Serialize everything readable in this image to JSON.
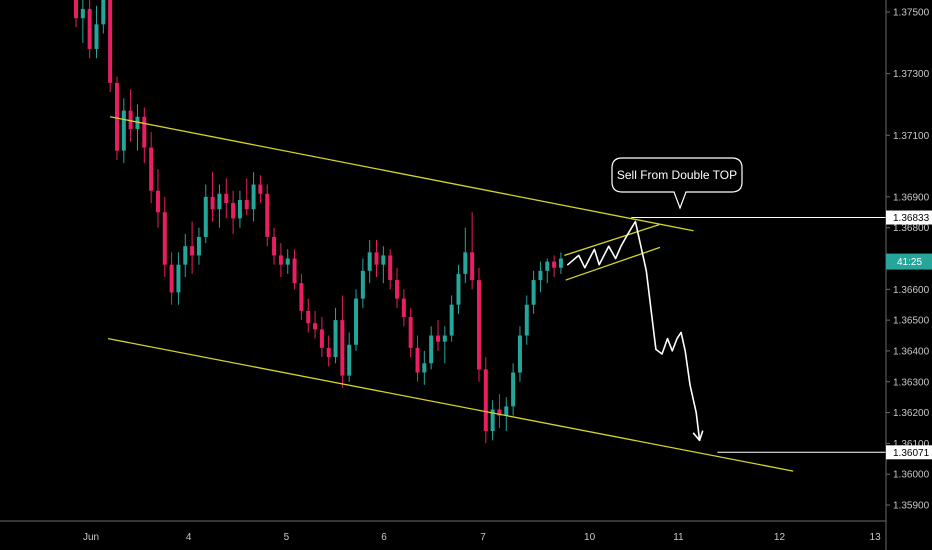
{
  "chart_data": {
    "type": "candlestick",
    "instrument_timeframe": "",
    "colors": {
      "up": "#26a69a",
      "down": "#e91e63",
      "channel": "#d4d42a",
      "projection": "#ffffff",
      "background": "#000000"
    },
    "yticks": [
      "1.37500",
      "1.37300",
      "1.37100",
      "1.36900",
      "1.36800",
      "1.36600",
      "1.36500",
      "1.36400",
      "1.36300",
      "1.36200",
      "1.36100",
      "1.36000",
      "1.35900"
    ],
    "xticks": [
      "Jun",
      "4",
      "5",
      "6",
      "7",
      "10",
      "11",
      "12",
      "13"
    ],
    "ylim": [
      1.3586,
      1.3762
    ],
    "price_tags": [
      {
        "label": "1.36833",
        "value": 1.36833
      },
      {
        "label": "1.36071",
        "value": 1.36071
      }
    ],
    "current_price_tag": {
      "label": "41:25",
      "value": 1.3669
    },
    "annotation": "Sell From Double TOP",
    "x_index_range": [
      0,
      95
    ],
    "candles": [
      [
        0,
        1.3755,
        1.3762,
        1.3745,
        1.3748
      ],
      [
        1,
        1.3748,
        1.3758,
        1.374,
        1.3751
      ],
      [
        2,
        1.3751,
        1.3756,
        1.3735,
        1.3738
      ],
      [
        3,
        1.3738,
        1.3752,
        1.3735,
        1.3746
      ],
      [
        4,
        1.3746,
        1.376,
        1.3743,
        1.3755
      ],
      [
        5,
        1.3755,
        1.3759,
        1.3724,
        1.3727
      ],
      [
        6,
        1.3727,
        1.3729,
        1.3702,
        1.3705
      ],
      [
        7,
        1.3705,
        1.3722,
        1.3701,
        1.3718
      ],
      [
        8,
        1.3718,
        1.3725,
        1.3708,
        1.3712
      ],
      [
        9,
        1.3712,
        1.372,
        1.3705,
        1.3716
      ],
      [
        10,
        1.3716,
        1.3719,
        1.3701,
        1.3706
      ],
      [
        11,
        1.3706,
        1.3711,
        1.3688,
        1.3692
      ],
      [
        12,
        1.3692,
        1.3699,
        1.368,
        1.3685
      ],
      [
        13,
        1.3685,
        1.369,
        1.3664,
        1.3668
      ],
      [
        14,
        1.3668,
        1.3672,
        1.3655,
        1.3659
      ],
      [
        15,
        1.3659,
        1.3672,
        1.3655,
        1.3668
      ],
      [
        16,
        1.3668,
        1.3678,
        1.3664,
        1.3674
      ],
      [
        17,
        1.3674,
        1.3682,
        1.3665,
        1.3671
      ],
      [
        18,
        1.3671,
        1.368,
        1.3668,
        1.3677
      ],
      [
        19,
        1.3677,
        1.3694,
        1.3675,
        1.369
      ],
      [
        20,
        1.369,
        1.3698,
        1.3682,
        1.3686
      ],
      [
        21,
        1.3686,
        1.3694,
        1.368,
        1.3691
      ],
      [
        22,
        1.3691,
        1.3696,
        1.3683,
        1.3688
      ],
      [
        23,
        1.3688,
        1.3692,
        1.3678,
        1.3683
      ],
      [
        24,
        1.3683,
        1.3692,
        1.368,
        1.3689
      ],
      [
        25,
        1.3689,
        1.3696,
        1.3684,
        1.3686
      ],
      [
        26,
        1.3686,
        1.3698,
        1.3682,
        1.3694
      ],
      [
        27,
        1.3694,
        1.3697,
        1.3688,
        1.3691
      ],
      [
        28,
        1.3691,
        1.3694,
        1.3674,
        1.3677
      ],
      [
        29,
        1.3677,
        1.368,
        1.3668,
        1.3671
      ],
      [
        30,
        1.3671,
        1.3675,
        1.3664,
        1.3668
      ],
      [
        31,
        1.3668,
        1.3673,
        1.3665,
        1.367
      ],
      [
        32,
        1.367,
        1.3673,
        1.366,
        1.3662
      ],
      [
        33,
        1.3662,
        1.3665,
        1.365,
        1.3653
      ],
      [
        34,
        1.3653,
        1.3657,
        1.3646,
        1.3649
      ],
      [
        35,
        1.3649,
        1.3653,
        1.3644,
        1.3647
      ],
      [
        36,
        1.3647,
        1.3651,
        1.3638,
        1.3641
      ],
      [
        37,
        1.3641,
        1.3645,
        1.3635,
        1.3638
      ],
      [
        38,
        1.3638,
        1.3654,
        1.3636,
        1.365
      ],
      [
        39,
        1.365,
        1.3658,
        1.3628,
        1.3632
      ],
      [
        40,
        1.3632,
        1.3646,
        1.363,
        1.3642
      ],
      [
        41,
        1.3642,
        1.366,
        1.364,
        1.3657
      ],
      [
        42,
        1.3657,
        1.367,
        1.3654,
        1.3666
      ],
      [
        43,
        1.3666,
        1.3676,
        1.3662,
        1.3672
      ],
      [
        44,
        1.3672,
        1.3676,
        1.3664,
        1.3668
      ],
      [
        45,
        1.3668,
        1.3674,
        1.3662,
        1.3671
      ],
      [
        46,
        1.3671,
        1.3673,
        1.366,
        1.3663
      ],
      [
        47,
        1.3663,
        1.3667,
        1.3654,
        1.3657
      ],
      [
        48,
        1.3657,
        1.366,
        1.3648,
        1.3651
      ],
      [
        49,
        1.3651,
        1.3654,
        1.3638,
        1.3641
      ],
      [
        50,
        1.3641,
        1.3645,
        1.363,
        1.3633
      ],
      [
        51,
        1.3633,
        1.364,
        1.3629,
        1.3636
      ],
      [
        52,
        1.3636,
        1.3648,
        1.3634,
        1.3645
      ],
      [
        53,
        1.3645,
        1.365,
        1.364,
        1.3643
      ],
      [
        54,
        1.3643,
        1.3648,
        1.3636,
        1.3645
      ],
      [
        55,
        1.3645,
        1.3658,
        1.3643,
        1.3655
      ],
      [
        56,
        1.3655,
        1.3668,
        1.3652,
        1.3665
      ],
      [
        57,
        1.3665,
        1.368,
        1.3662,
        1.3672
      ],
      [
        58,
        1.3672,
        1.3685,
        1.366,
        1.3663
      ],
      [
        59,
        1.3663,
        1.3667,
        1.363,
        1.3634
      ],
      [
        60,
        1.3634,
        1.3638,
        1.361,
        1.3614
      ],
      [
        61,
        1.3614,
        1.3624,
        1.3611,
        1.3621
      ],
      [
        62,
        1.3621,
        1.3626,
        1.3615,
        1.3619
      ],
      [
        63,
        1.3619,
        1.3625,
        1.3614,
        1.3622
      ],
      [
        64,
        1.3622,
        1.3636,
        1.3619,
        1.3633
      ],
      [
        65,
        1.3633,
        1.3648,
        1.363,
        1.3645
      ],
      [
        66,
        1.3645,
        1.3658,
        1.3642,
        1.3655
      ],
      [
        67,
        1.3655,
        1.3666,
        1.3652,
        1.3663
      ],
      [
        68,
        1.3663,
        1.3669,
        1.3659,
        1.3666
      ],
      [
        69,
        1.3666,
        1.367,
        1.3662,
        1.3669
      ],
      [
        70,
        1.3669,
        1.3671,
        1.3664,
        1.3667
      ],
      [
        71,
        1.3667,
        1.3672,
        1.3665,
        1.367
      ]
    ],
    "channel_lines": [
      {
        "name": "upper",
        "from": [
          5,
          1.3716
        ],
        "to": [
          90.4,
          1.3679
        ]
      },
      {
        "name": "lower",
        "from": [
          4.7,
          1.3644
        ],
        "to": [
          105,
          1.3601
        ]
      }
    ],
    "rising_wedge_lines": [
      {
        "from": [
          71.5,
          1.3671
        ],
        "to": [
          85.4,
          1.3681
        ]
      },
      {
        "from": [
          71.7,
          1.3663
        ],
        "to": [
          85.5,
          1.36736
        ]
      }
    ],
    "horizontal_levels": [
      {
        "value": 1.36833,
        "from_index": 81.3
      },
      {
        "value": 1.36071,
        "from_index": 93.9
      }
    ],
    "projection_path": [
      [
        72.0,
        1.3668
      ],
      [
        73.6,
        1.3671
      ],
      [
        74.5,
        1.3667
      ],
      [
        75.2,
        1.367
      ],
      [
        75.9,
        1.3673
      ],
      [
        76.6,
        1.3668
      ],
      [
        77.3,
        1.3671
      ],
      [
        78.0,
        1.3674
      ],
      [
        79.0,
        1.367
      ],
      [
        79.8,
        1.3674
      ],
      [
        80.8,
        1.3678
      ],
      [
        81.9,
        1.3682
      ],
      [
        83.5,
        1.3666
      ],
      [
        84.9,
        1.36405
      ],
      [
        85.8,
        1.3639
      ],
      [
        86.6,
        1.3644
      ],
      [
        87.3,
        1.364
      ],
      [
        88.0,
        1.3644
      ],
      [
        88.6,
        1.3646
      ],
      [
        89.2,
        1.364
      ],
      [
        89.9,
        1.3629
      ],
      [
        90.8,
        1.362
      ],
      [
        91.3,
        1.3611
      ]
    ]
  }
}
